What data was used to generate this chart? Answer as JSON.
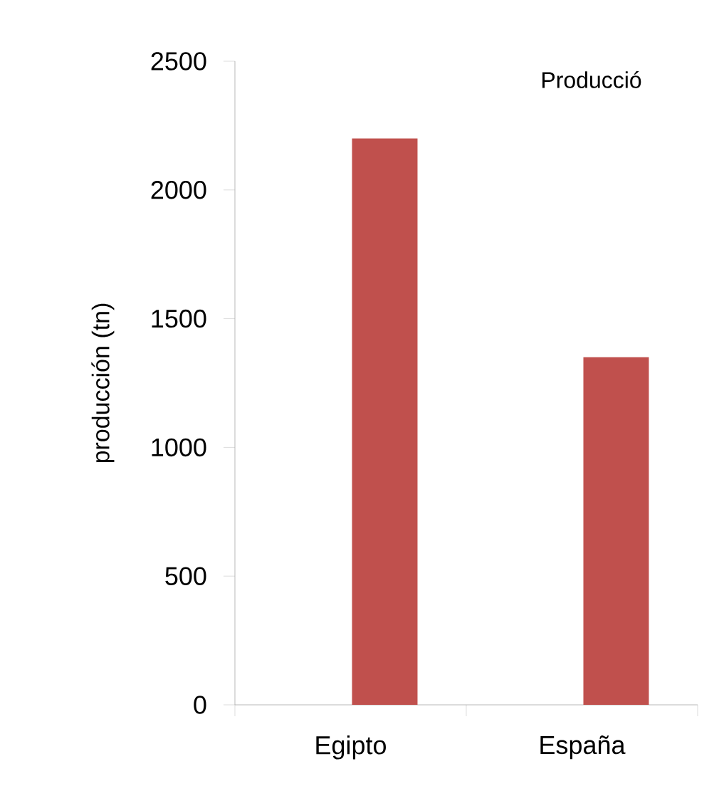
{
  "chart_data": {
    "type": "bar",
    "title": "Producció",
    "ylabel": "producción (tn)",
    "categories": [
      "Egipto",
      "España"
    ],
    "values": [
      2200,
      1350
    ],
    "color": "#c0504d",
    "ylim": [
      0,
      2500
    ],
    "yticks": [
      0,
      500,
      1000,
      1500,
      2000,
      2500
    ],
    "grid": false
  }
}
